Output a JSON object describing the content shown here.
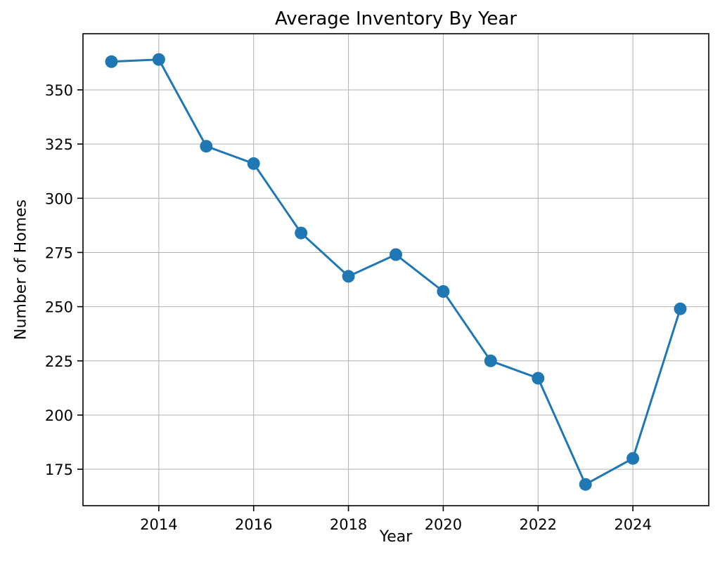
{
  "title": "Average Inventory By Year",
  "chart_data": {
    "type": "line",
    "title": "Average Inventory By Year",
    "xlabel": "Year",
    "ylabel": "Number of Homes",
    "x": [
      2013,
      2014,
      2015,
      2016,
      2017,
      2018,
      2019,
      2020,
      2021,
      2022,
      2023,
      2024,
      2025
    ],
    "y": [
      363,
      364,
      324,
      316,
      284,
      264,
      274,
      257,
      225,
      217,
      168,
      180,
      249
    ],
    "xticks": [
      2014,
      2016,
      2018,
      2020,
      2022,
      2024
    ],
    "yticks": [
      175,
      200,
      225,
      250,
      275,
      300,
      325,
      350
    ],
    "xlim": [
      2012.4,
      2025.6
    ],
    "ylim": [
      158.2,
      375.9
    ],
    "grid": true,
    "legend": null,
    "line_color": "#1f77b4",
    "grid_color": "#b0b0b0",
    "axis_color": "#000000",
    "marker": "circle"
  }
}
